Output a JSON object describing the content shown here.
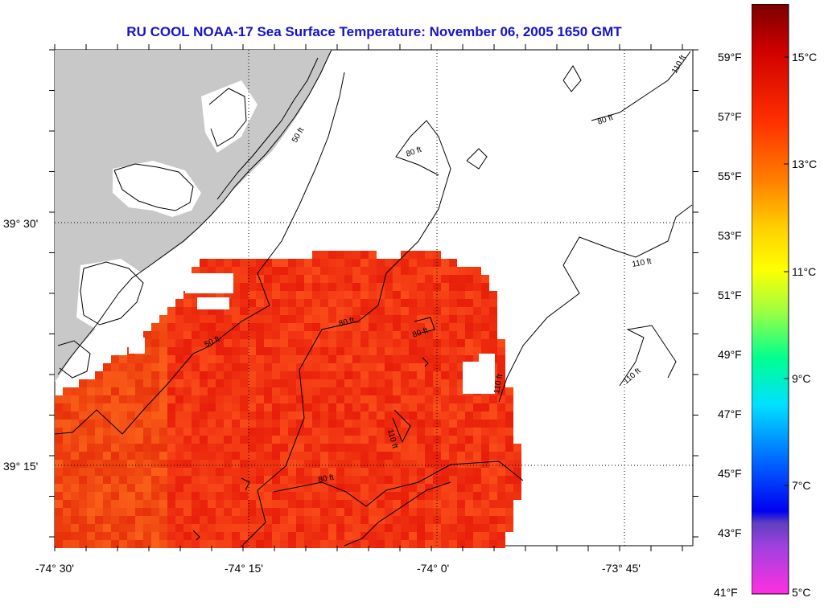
{
  "title": "RU COOL  NOAA-17  Sea Surface Temperature:  November 06, 2005 1650 GMT",
  "axes": {
    "lon_labels": [
      "-74° 30'",
      "-74° 15'",
      "-74° 0'",
      "-73° 45'"
    ],
    "lat_labels": [
      "39° 30'",
      "39° 15'"
    ]
  },
  "contours": {
    "labels": [
      "50 ft",
      "80 ft",
      "110 ft",
      "50 ft",
      "80 ft",
      "80 ft",
      "80 ft",
      "110 ft",
      "110 ft",
      "110 ft",
      "110 ft",
      "80 ft"
    ]
  },
  "colorbar": {
    "fahrenheit_labels": [
      "59°F",
      "57°F",
      "55°F",
      "53°F",
      "51°F",
      "49°F",
      "47°F",
      "45°F",
      "43°F",
      "41°F"
    ],
    "celsius_labels": [
      "15°C",
      "13°C",
      "11°C",
      "9°C",
      "7°C",
      "5°C"
    ]
  },
  "colors": {
    "land": "#c8c8c8",
    "sst_main": "#f2361a",
    "title": "#1414c8"
  }
}
